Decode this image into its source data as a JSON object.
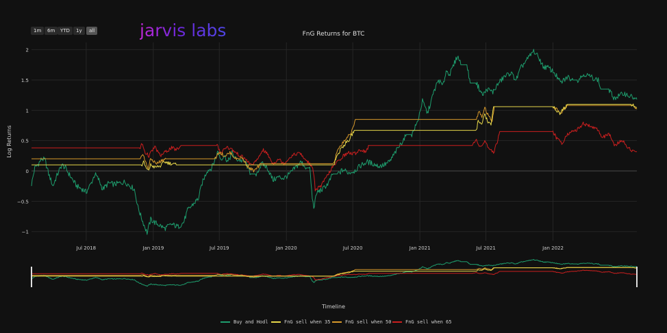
{
  "range_selector": {
    "buttons": [
      "1m",
      "6m",
      "YTD",
      "1y",
      "all"
    ],
    "active": "all"
  },
  "watermark": "jarvis labs",
  "colors": {
    "background": "#111111",
    "grid": "#2b2b2b",
    "text": "#cfcfcf",
    "rangeslider_handle": "#e0e0e0"
  },
  "chart_data": {
    "type": "line",
    "title": "FnG Returns for BTC",
    "xlabel": "Timeline",
    "ylabel": "Log Returns",
    "x_range": [
      "2018-02-01",
      "2022-08-19"
    ],
    "ylim": [
      -1.15,
      2.12
    ],
    "x_ticks": [
      {
        "date": "2018-07-01",
        "label": "Jul 2018"
      },
      {
        "date": "2019-01-01",
        "label": "Jan 2019"
      },
      {
        "date": "2019-07-01",
        "label": "Jul 2019"
      },
      {
        "date": "2020-01-01",
        "label": "Jan 2020"
      },
      {
        "date": "2020-07-01",
        "label": "Jul 2020"
      },
      {
        "date": "2021-01-01",
        "label": "Jan 2021"
      },
      {
        "date": "2021-07-01",
        "label": "Jul 2021"
      },
      {
        "date": "2022-01-01",
        "label": "Jan 2022"
      }
    ],
    "y_ticks": [
      {
        "value": 2,
        "label": "2"
      },
      {
        "value": 1.5,
        "label": "1.5"
      },
      {
        "value": 1,
        "label": "1"
      },
      {
        "value": 0.5,
        "label": "0.5"
      },
      {
        "value": 0,
        "label": "0"
      },
      {
        "value": -0.5,
        "label": "−0.5"
      },
      {
        "value": -1,
        "label": "−1"
      }
    ],
    "grid": true,
    "legend_position": "bottom",
    "rangeslider": true,
    "series": [
      {
        "name": "Buy and Hodl",
        "color": "#1e9e6e",
        "points": [
          [
            "2018-02-01",
            -0.22
          ],
          [
            "2018-02-10",
            0.05
          ],
          [
            "2018-02-20",
            0.12
          ],
          [
            "2018-03-01",
            0.2
          ],
          [
            "2018-03-10",
            0.18
          ],
          [
            "2018-03-20",
            -0.05
          ],
          [
            "2018-04-01",
            -0.25
          ],
          [
            "2018-04-10",
            -0.1
          ],
          [
            "2018-04-25",
            0.1
          ],
          [
            "2018-05-05",
            0.05
          ],
          [
            "2018-05-20",
            -0.1
          ],
          [
            "2018-06-05",
            -0.25
          ],
          [
            "2018-06-20",
            -0.3
          ],
          [
            "2018-07-01",
            -0.35
          ],
          [
            "2018-07-15",
            -0.2
          ],
          [
            "2018-07-25",
            -0.05
          ],
          [
            "2018-08-05",
            -0.15
          ],
          [
            "2018-08-15",
            -0.3
          ],
          [
            "2018-09-01",
            -0.2
          ],
          [
            "2018-09-15",
            -0.22
          ],
          [
            "2018-10-01",
            -0.2
          ],
          [
            "2018-10-15",
            -0.18
          ],
          [
            "2018-11-10",
            -0.3
          ],
          [
            "2018-11-20",
            -0.6
          ],
          [
            "2018-12-01",
            -0.8
          ],
          [
            "2018-12-15",
            -1.02
          ],
          [
            "2018-12-25",
            -0.8
          ],
          [
            "2019-01-05",
            -0.85
          ],
          [
            "2019-01-20",
            -0.9
          ],
          [
            "2019-02-01",
            -0.95
          ],
          [
            "2019-02-20",
            -0.88
          ],
          [
            "2019-03-10",
            -0.92
          ],
          [
            "2019-03-25",
            -0.85
          ],
          [
            "2019-04-05",
            -0.65
          ],
          [
            "2019-04-20",
            -0.55
          ],
          [
            "2019-05-05",
            -0.45
          ],
          [
            "2019-05-15",
            -0.2
          ],
          [
            "2019-05-28",
            0.0
          ],
          [
            "2019-06-10",
            0.05
          ],
          [
            "2019-06-20",
            0.2
          ],
          [
            "2019-06-27",
            0.32
          ],
          [
            "2019-07-05",
            0.2
          ],
          [
            "2019-07-15",
            0.25
          ],
          [
            "2019-07-25",
            0.15
          ],
          [
            "2019-08-05",
            0.3
          ],
          [
            "2019-08-15",
            0.2
          ],
          [
            "2019-08-25",
            0.18
          ],
          [
            "2019-09-10",
            0.15
          ],
          [
            "2019-09-25",
            -0.05
          ],
          [
            "2019-10-10",
            -0.05
          ],
          [
            "2019-10-26",
            0.12
          ],
          [
            "2019-11-10",
            0.05
          ],
          [
            "2019-11-25",
            -0.15
          ],
          [
            "2019-12-10",
            -0.1
          ],
          [
            "2019-12-25",
            -0.12
          ],
          [
            "2020-01-10",
            -0.05
          ],
          [
            "2020-01-25",
            0.05
          ],
          [
            "2020-02-10",
            0.15
          ],
          [
            "2020-02-25",
            0.05
          ],
          [
            "2020-03-05",
            0.05
          ],
          [
            "2020-03-12",
            -0.45
          ],
          [
            "2020-03-16",
            -0.6
          ],
          [
            "2020-03-25",
            -0.35
          ],
          [
            "2020-04-10",
            -0.3
          ],
          [
            "2020-04-25",
            -0.2
          ],
          [
            "2020-05-08",
            -0.05
          ],
          [
            "2020-05-20",
            -0.05
          ],
          [
            "2020-06-05",
            0.02
          ],
          [
            "2020-06-20",
            -0.03
          ],
          [
            "2020-07-05",
            0.0
          ],
          [
            "2020-07-25",
            0.1
          ],
          [
            "2020-08-10",
            0.15
          ],
          [
            "2020-08-25",
            0.12
          ],
          [
            "2020-09-10",
            0.08
          ],
          [
            "2020-09-25",
            0.1
          ],
          [
            "2020-10-10",
            0.15
          ],
          [
            "2020-10-25",
            0.3
          ],
          [
            "2020-11-10",
            0.45
          ],
          [
            "2020-11-25",
            0.6
          ],
          [
            "2020-12-10",
            0.6
          ],
          [
            "2020-12-25",
            0.8
          ],
          [
            "2021-01-08",
            1.15
          ],
          [
            "2021-01-22",
            0.95
          ],
          [
            "2021-02-08",
            1.3
          ],
          [
            "2021-02-21",
            1.5
          ],
          [
            "2021-03-05",
            1.4
          ],
          [
            "2021-03-14",
            1.65
          ],
          [
            "2021-03-25",
            1.6
          ],
          [
            "2021-04-14",
            1.9
          ],
          [
            "2021-04-25",
            1.75
          ],
          [
            "2021-05-10",
            1.75
          ],
          [
            "2021-05-19",
            1.45
          ],
          [
            "2021-06-05",
            1.45
          ],
          [
            "2021-06-22",
            1.25
          ],
          [
            "2021-07-05",
            1.35
          ],
          [
            "2021-07-20",
            1.3
          ],
          [
            "2021-08-05",
            1.45
          ],
          [
            "2021-08-20",
            1.55
          ],
          [
            "2021-09-07",
            1.62
          ],
          [
            "2021-09-22",
            1.5
          ],
          [
            "2021-10-05",
            1.7
          ],
          [
            "2021-10-20",
            1.82
          ],
          [
            "2021-11-09",
            1.98
          ],
          [
            "2021-11-25",
            1.85
          ],
          [
            "2021-12-05",
            1.72
          ],
          [
            "2021-12-20",
            1.7
          ],
          [
            "2022-01-05",
            1.62
          ],
          [
            "2022-01-22",
            1.45
          ],
          [
            "2022-02-10",
            1.55
          ],
          [
            "2022-02-25",
            1.5
          ],
          [
            "2022-03-10",
            1.5
          ],
          [
            "2022-03-28",
            1.6
          ],
          [
            "2022-04-15",
            1.55
          ],
          [
            "2022-05-05",
            1.5
          ],
          [
            "2022-05-12",
            1.35
          ],
          [
            "2022-06-01",
            1.35
          ],
          [
            "2022-06-18",
            1.2
          ],
          [
            "2022-07-15",
            1.28
          ],
          [
            "2022-08-19",
            1.18
          ]
        ]
      },
      {
        "name": "FnG sell when 35",
        "color": "#e8d84a",
        "points": [
          [
            "2018-02-01",
            0.1
          ],
          [
            "2018-12-01",
            0.1
          ],
          [
            "2018-12-05",
            0.15
          ],
          [
            "2018-12-12",
            0.05
          ],
          [
            "2018-12-18",
            0.0
          ],
          [
            "2018-12-25",
            0.1
          ],
          [
            "2019-01-05",
            0.06
          ],
          [
            "2019-01-20",
            0.08
          ],
          [
            "2019-02-01",
            0.15
          ],
          [
            "2019-02-20",
            0.12
          ],
          [
            "2019-03-05",
            0.1
          ],
          [
            "2019-12-10",
            0.1
          ],
          [
            "2020-05-08",
            0.1
          ],
          [
            "2020-05-10",
            0.1
          ],
          [
            "2020-05-15",
            0.2
          ],
          [
            "2020-05-28",
            0.35
          ],
          [
            "2020-06-10",
            0.45
          ],
          [
            "2020-06-20",
            0.5
          ],
          [
            "2020-07-05",
            0.67
          ],
          [
            "2021-06-05",
            0.67
          ],
          [
            "2021-06-10",
            0.85
          ],
          [
            "2021-06-20",
            0.75
          ],
          [
            "2021-06-28",
            0.95
          ],
          [
            "2021-07-05",
            0.82
          ],
          [
            "2021-07-15",
            0.75
          ],
          [
            "2021-07-22",
            1.06
          ],
          [
            "2022-01-02",
            1.06
          ],
          [
            "2022-01-10",
            1.0
          ],
          [
            "2022-01-20",
            0.95
          ],
          [
            "2022-02-05",
            1.06
          ],
          [
            "2022-02-10",
            1.1
          ],
          [
            "2022-08-05",
            1.1
          ],
          [
            "2022-08-19",
            1.05
          ]
        ]
      },
      {
        "name": "FnG sell when 50",
        "color": "#d99a2b",
        "points": [
          [
            "2018-02-01",
            0.2
          ],
          [
            "2018-11-28",
            0.2
          ],
          [
            "2018-12-03",
            0.3
          ],
          [
            "2018-12-10",
            0.15
          ],
          [
            "2018-12-18",
            0.05
          ],
          [
            "2018-12-25",
            0.2
          ],
          [
            "2019-01-10",
            0.12
          ],
          [
            "2019-01-25",
            0.18
          ],
          [
            "2019-02-05",
            0.2
          ],
          [
            "2019-06-20",
            0.2
          ],
          [
            "2019-06-30",
            0.32
          ],
          [
            "2019-07-15",
            0.25
          ],
          [
            "2019-08-01",
            0.3
          ],
          [
            "2019-08-15",
            0.2
          ],
          [
            "2019-09-01",
            0.22
          ],
          [
            "2019-09-20",
            0.05
          ],
          [
            "2019-10-05",
            0.0
          ],
          [
            "2019-10-25",
            0.12
          ],
          [
            "2019-11-20",
            0.12
          ],
          [
            "2020-05-10",
            0.12
          ],
          [
            "2020-05-18",
            0.3
          ],
          [
            "2020-06-01",
            0.45
          ],
          [
            "2020-06-15",
            0.55
          ],
          [
            "2020-06-25",
            0.6
          ],
          [
            "2020-07-08",
            0.85
          ],
          [
            "2021-06-05",
            0.85
          ],
          [
            "2021-06-12",
            1.0
          ],
          [
            "2021-06-20",
            0.88
          ],
          [
            "2021-06-28",
            1.05
          ],
          [
            "2021-07-08",
            0.9
          ],
          [
            "2021-07-18",
            0.82
          ],
          [
            "2021-07-24",
            1.06
          ],
          [
            "2022-01-02",
            1.06
          ],
          [
            "2022-01-10",
            1.02
          ],
          [
            "2022-01-22",
            0.95
          ],
          [
            "2022-02-08",
            1.08
          ],
          [
            "2022-08-05",
            1.08
          ],
          [
            "2022-08-19",
            1.02
          ]
        ]
      },
      {
        "name": "FnG sell when 65",
        "color": "#cc1f1f",
        "points": [
          [
            "2018-02-01",
            0.38
          ],
          [
            "2018-11-26",
            0.38
          ],
          [
            "2018-12-01",
            0.45
          ],
          [
            "2018-12-10",
            0.3
          ],
          [
            "2018-12-20",
            0.25
          ],
          [
            "2019-01-05",
            0.4
          ],
          [
            "2019-01-20",
            0.25
          ],
          [
            "2019-02-05",
            0.32
          ],
          [
            "2019-02-20",
            0.38
          ],
          [
            "2019-03-05",
            0.35
          ],
          [
            "2019-03-20",
            0.42
          ],
          [
            "2019-06-25",
            0.42
          ],
          [
            "2019-07-05",
            0.3
          ],
          [
            "2019-07-20",
            0.4
          ],
          [
            "2019-08-05",
            0.35
          ],
          [
            "2019-08-20",
            0.28
          ],
          [
            "2019-09-10",
            0.2
          ],
          [
            "2019-09-25",
            0.1
          ],
          [
            "2019-10-10",
            0.15
          ],
          [
            "2019-10-28",
            0.35
          ],
          [
            "2019-11-10",
            0.28
          ],
          [
            "2019-11-25",
            0.12
          ],
          [
            "2019-12-10",
            0.2
          ],
          [
            "2019-12-25",
            0.12
          ],
          [
            "2020-01-15",
            0.25
          ],
          [
            "2020-02-05",
            0.3
          ],
          [
            "2020-02-20",
            0.2
          ],
          [
            "2020-03-05",
            0.12
          ],
          [
            "2020-03-15",
            0.0
          ],
          [
            "2020-03-20",
            -0.3
          ],
          [
            "2020-04-05",
            -0.25
          ],
          [
            "2020-04-20",
            -0.1
          ],
          [
            "2020-05-05",
            0.05
          ],
          [
            "2020-05-20",
            0.15
          ],
          [
            "2020-06-05",
            0.25
          ],
          [
            "2020-06-20",
            0.3
          ],
          [
            "2020-07-05",
            0.28
          ],
          [
            "2020-07-20",
            0.35
          ],
          [
            "2020-08-05",
            0.32
          ],
          [
            "2020-08-15",
            0.42
          ],
          [
            "2021-05-25",
            0.42
          ],
          [
            "2021-06-05",
            0.52
          ],
          [
            "2021-06-15",
            0.4
          ],
          [
            "2021-06-28",
            0.48
          ],
          [
            "2021-07-10",
            0.35
          ],
          [
            "2021-07-22",
            0.3
          ],
          [
            "2021-08-01",
            0.48
          ],
          [
            "2021-08-08",
            0.65
          ],
          [
            "2022-01-01",
            0.65
          ],
          [
            "2022-01-10",
            0.55
          ],
          [
            "2022-01-25",
            0.45
          ],
          [
            "2022-02-10",
            0.62
          ],
          [
            "2022-03-01",
            0.65
          ],
          [
            "2022-03-25",
            0.78
          ],
          [
            "2022-04-10",
            0.75
          ],
          [
            "2022-05-05",
            0.68
          ],
          [
            "2022-05-15",
            0.55
          ],
          [
            "2022-06-05",
            0.6
          ],
          [
            "2022-06-18",
            0.42
          ],
          [
            "2022-07-10",
            0.5
          ],
          [
            "2022-08-01",
            0.35
          ],
          [
            "2022-08-19",
            0.32
          ]
        ]
      }
    ]
  }
}
